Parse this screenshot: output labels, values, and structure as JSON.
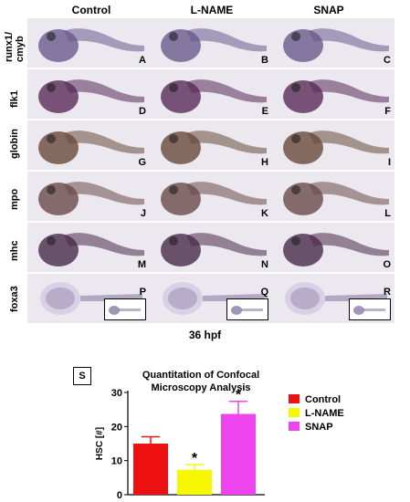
{
  "columns": [
    "Control",
    "L-NAME",
    "SNAP"
  ],
  "rows": [
    {
      "label": "runx1/\ncmyb",
      "panels": [
        "A",
        "B",
        "C"
      ],
      "color": "#6a5a8c"
    },
    {
      "label": "flk1",
      "panels": [
        "D",
        "E",
        "F"
      ],
      "color": "#5a2a5a"
    },
    {
      "label": "globin",
      "panels": [
        "G",
        "H",
        "I"
      ],
      "color": "#6a4a3a"
    },
    {
      "label": "mpo",
      "panels": [
        "J",
        "K",
        "L"
      ],
      "color": "#6a4a4a"
    },
    {
      "label": "mhc",
      "panels": [
        "M",
        "N",
        "O"
      ],
      "color": "#4a2a4a"
    },
    {
      "label": "foxa3",
      "panels": [
        "P",
        "Q",
        "R"
      ],
      "color": "#7a6a9a"
    }
  ],
  "timepoint": "36 hpf",
  "panel_s_label": "S",
  "chart_data": {
    "type": "bar",
    "title": "Quantitation of Confocal Microscopy Analysis",
    "ylabel": "HSC [#]",
    "xlabel": "",
    "ylim": [
      0,
      30
    ],
    "yticks": [
      0,
      10,
      20,
      30
    ],
    "categories": [
      "Control",
      "L-NAME",
      "SNAP"
    ],
    "values": [
      15,
      7.3,
      23.7
    ],
    "errors": [
      2,
      1.5,
      3.7
    ],
    "significance": [
      "",
      "*",
      "*"
    ],
    "colors": [
      "#ee1111",
      "#f7f700",
      "#ee44ee"
    ],
    "legend": [
      {
        "name": "Control",
        "color": "#ee1111"
      },
      {
        "name": "L-NAME",
        "color": "#f7f700"
      },
      {
        "name": "SNAP",
        "color": "#ee44ee"
      }
    ],
    "legend_position": "top-right"
  }
}
